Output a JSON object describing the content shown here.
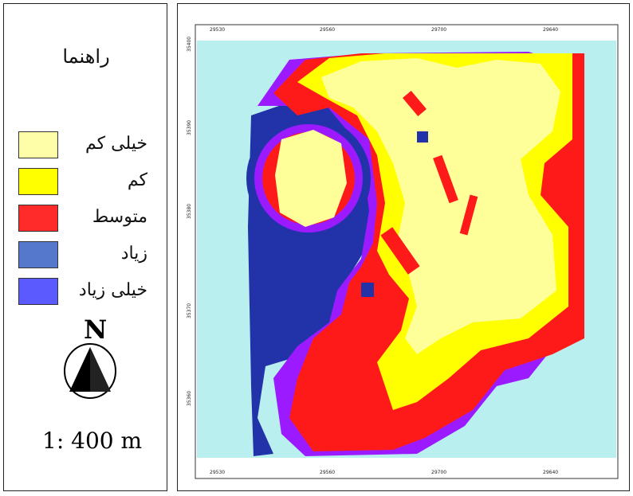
{
  "legend": {
    "title": "راهنما",
    "items": [
      {
        "label": "خیلی کم",
        "color": "#fffea8"
      },
      {
        "label": "کم",
        "color": "#ffff00"
      },
      {
        "label": "متوسط",
        "color": "#ff2a2a"
      },
      {
        "label": "زیاد",
        "color": "#5577cc"
      },
      {
        "label": "خیلی زیاد",
        "color": "#5a5aff"
      }
    ],
    "north_label": "N",
    "scale": "1: 400 m"
  },
  "map": {
    "background_color": "#b9efef",
    "zone_colors": {
      "very_low": "#ffff99",
      "low": "#ffff00",
      "medium": "#ff1a1a",
      "high": "#9b1aff",
      "very_high": "#2233aa"
    },
    "top_ticks": [
      "29530",
      "29560",
      "29700",
      "29640"
    ],
    "bottom_ticks": [
      "29530",
      "29560",
      "29700",
      "29640"
    ],
    "left_ticks": [
      "35400",
      "35390",
      "35380",
      "35370",
      "35360"
    ]
  }
}
